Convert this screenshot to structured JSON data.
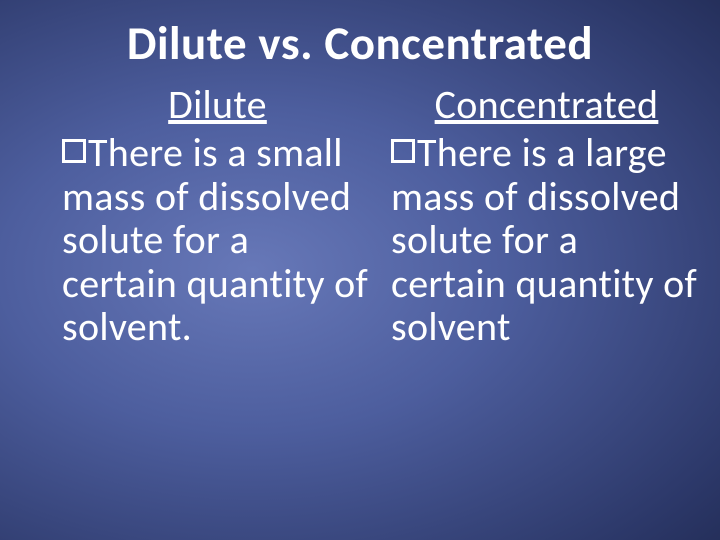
{
  "slide": {
    "title": "Dilute vs. Concentrated",
    "background": {
      "gradient_colors": [
        "#6778b8",
        "#4d5e9e",
        "#2c3869",
        "#141b3a",
        "#08091a"
      ],
      "type": "radial"
    },
    "text_color": "#ffffff",
    "title_fontsize": 47,
    "body_fontsize": 40,
    "left": {
      "heading": "Dilute",
      "body": "There is a small mass of dissolved solute for a certain quantity of solvent."
    },
    "right": {
      "heading": "Concentrated",
      "body": "There is a large mass of dissolved solute for a certain quantity of solvent"
    }
  }
}
